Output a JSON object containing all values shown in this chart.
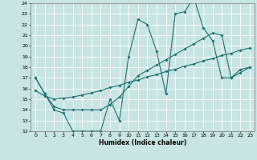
{
  "xlabel": "Humidex (Indice chaleur)",
  "bg_color": "#c8e4e4",
  "grid_color": "#ffffff",
  "line_color": "#1a7070",
  "xlim": [
    -0.5,
    23.5
  ],
  "ylim": [
    12,
    24
  ],
  "xticks": [
    0,
    1,
    2,
    3,
    4,
    5,
    6,
    7,
    8,
    9,
    10,
    11,
    12,
    13,
    14,
    15,
    16,
    17,
    18,
    19,
    20,
    21,
    22,
    23
  ],
  "yticks": [
    12,
    13,
    14,
    15,
    16,
    17,
    18,
    19,
    20,
    21,
    22,
    23,
    24
  ],
  "line1_x": [
    0,
    1,
    2,
    3,
    4,
    5,
    6,
    7,
    8,
    9,
    10,
    11,
    12,
    13,
    14,
    15,
    16,
    17,
    18,
    19,
    20,
    21,
    22,
    23
  ],
  "line1_y": [
    17.0,
    15.5,
    14.0,
    13.7,
    12.0,
    12.0,
    12.0,
    12.0,
    15.0,
    13.0,
    19.0,
    22.5,
    22.0,
    19.5,
    15.5,
    23.0,
    23.2,
    24.5,
    21.7,
    20.5,
    17.0,
    17.0,
    17.8,
    18.0
  ],
  "line2_x": [
    0,
    1,
    2,
    3,
    4,
    5,
    6,
    7,
    8,
    9,
    10,
    11,
    12,
    13,
    14,
    15,
    16,
    17,
    18,
    19,
    20,
    21,
    22,
    23
  ],
  "line2_y": [
    15.8,
    15.3,
    15.0,
    15.1,
    15.2,
    15.4,
    15.6,
    15.8,
    16.1,
    16.3,
    16.6,
    16.8,
    17.1,
    17.3,
    17.6,
    17.8,
    18.1,
    18.3,
    18.6,
    18.8,
    19.1,
    19.3,
    19.6,
    19.8
  ],
  "line3_x": [
    0,
    1,
    2,
    3,
    4,
    5,
    6,
    7,
    8,
    9,
    10,
    11,
    12,
    13,
    14,
    15,
    16,
    17,
    18,
    19,
    20,
    21,
    22,
    23
  ],
  "line3_y": [
    17.0,
    15.5,
    14.3,
    14.0,
    14.0,
    14.0,
    14.0,
    14.0,
    14.5,
    15.2,
    16.2,
    17.2,
    17.7,
    18.2,
    18.7,
    19.2,
    19.7,
    20.2,
    20.7,
    21.2,
    21.0,
    17.0,
    17.5,
    18.0
  ]
}
